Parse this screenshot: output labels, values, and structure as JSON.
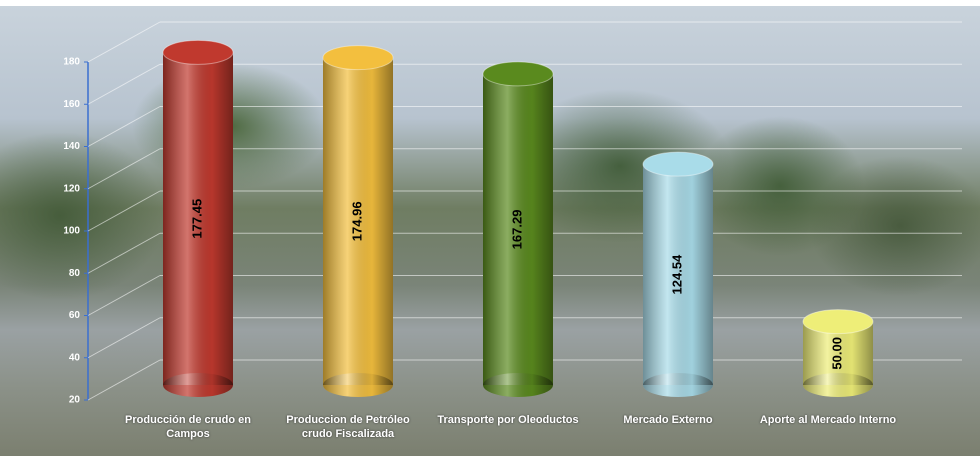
{
  "chart_data": {
    "type": "cylinder-bar",
    "categories": [
      "Producción de crudo en Campos",
      "Produccion de Petróleo crudo Fiscalizada",
      "Transporte por Oleoductos",
      "Mercado Externo",
      "Aporte al Mercado Interno"
    ],
    "values": [
      177.45,
      174.96,
      167.29,
      124.54,
      50
    ],
    "value_labels": [
      "177.45",
      "174.96",
      "167.29",
      "124.54",
      "50.00"
    ],
    "colors": [
      "#c0392e",
      "#f3bf3e",
      "#5a8a1e",
      "#a9dce9",
      "#eeee78"
    ],
    "ylim": [
      20,
      180
    ],
    "yticks": [
      20,
      40,
      60,
      80,
      100,
      120,
      140,
      160,
      180
    ],
    "grid": true
  }
}
